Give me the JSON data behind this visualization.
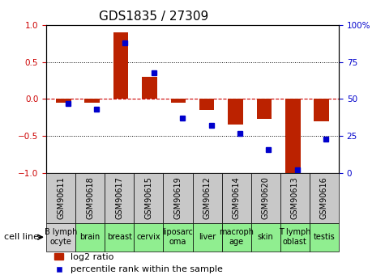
{
  "title": "GDS1835 / 27309",
  "gsm_ids": [
    "GSM90611",
    "GSM90618",
    "GSM90617",
    "GSM90615",
    "GSM90619",
    "GSM90612",
    "GSM90614",
    "GSM90620",
    "GSM90613",
    "GSM90616"
  ],
  "cell_lines": [
    "B lymph\nocyte",
    "brain",
    "breast",
    "cervix",
    "liposarc\noma",
    "liver",
    "macroph\nage",
    "skin",
    "T lymph\noblast",
    "testis"
  ],
  "cell_bg": [
    "#d0d0d0",
    "#90ee90",
    "#90ee90",
    "#90ee90",
    "#90ee90",
    "#90ee90",
    "#90ee90",
    "#90ee90",
    "#90ee90",
    "#90ee90"
  ],
  "log2_ratio": [
    -0.05,
    -0.05,
    0.9,
    0.3,
    -0.05,
    -0.15,
    -0.35,
    -0.27,
    -1.0,
    -0.3
  ],
  "percentile_rank": [
    47,
    43,
    88,
    68,
    37,
    32,
    27,
    16,
    2,
    23
  ],
  "bar_width": 0.35,
  "red_color": "#bb2200",
  "blue_color": "#0000cc",
  "ylim": [
    -1.0,
    1.0
  ],
  "y2lim": [
    0,
    100
  ],
  "yticks": [
    -1.0,
    -0.5,
    0.0,
    0.5,
    1.0
  ],
  "y2ticks": [
    0,
    25,
    50,
    75,
    100
  ],
  "xlabel_color": "#cc0000",
  "ylabel_color": "#cc0000",
  "y2label_color": "#0000cc",
  "zero_line_color": "#cc0000",
  "dotted_line_color": "#000000",
  "bg_color": "#ffffff",
  "title_fontsize": 11,
  "tick_fontsize": 7.5,
  "legend_fontsize": 8,
  "cell_line_fontsize": 7
}
